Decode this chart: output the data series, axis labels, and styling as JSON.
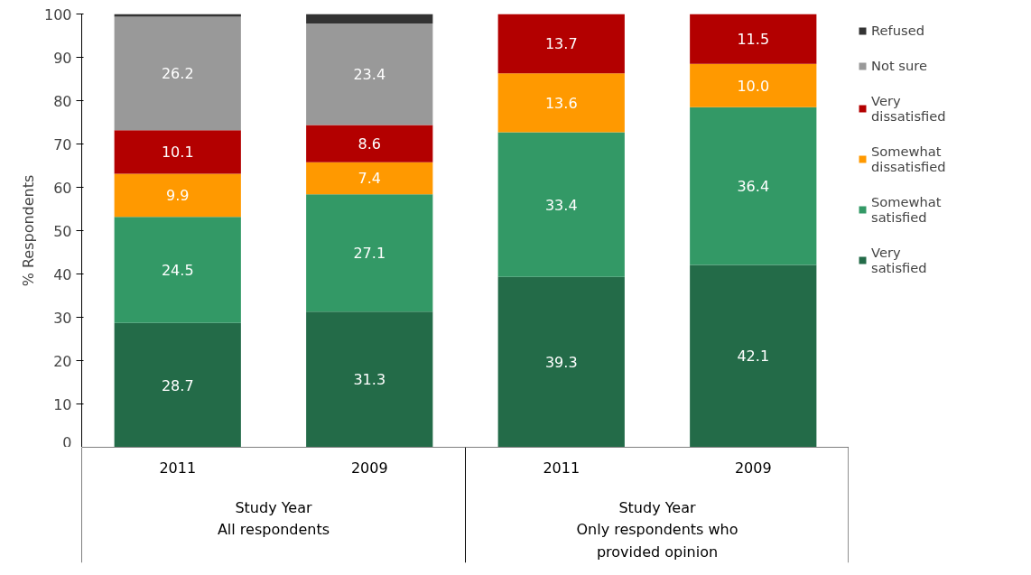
{
  "chart_data": {
    "type": "bar",
    "stacked": true,
    "ylabel": "% Respondents",
    "categories": [
      "2011",
      "2009",
      "2011",
      "2009"
    ],
    "series": [
      {
        "name": "Very satisfied",
        "color": "#236b48",
        "values": [
          28.7,
          31.3,
          39.3,
          42.1
        ],
        "value_labels": [
          "28.7",
          "31.3",
          "39.3",
          "42.1"
        ]
      },
      {
        "name": "Somewhat satisfied",
        "color": "#339966",
        "values": [
          24.5,
          27.1,
          33.4,
          36.4
        ],
        "value_labels": [
          "24.5",
          "27.1",
          "33.4",
          "36.4"
        ]
      },
      {
        "name": "Somewhat dissatisfied",
        "color": "#ff9900",
        "values": [
          9.9,
          7.4,
          13.6,
          10.0
        ],
        "value_labels": [
          "9.9",
          "7.4",
          "13.6",
          "10.0"
        ]
      },
      {
        "name": "Very dissatisfied",
        "color": "#b30000",
        "values": [
          10.1,
          8.6,
          13.7,
          11.5
        ],
        "value_labels": [
          "10.1",
          "8.6",
          "13.7",
          "11.5"
        ]
      },
      {
        "name": "Not sure",
        "color": "#999999",
        "values": [
          26.2,
          23.4,
          0,
          0
        ],
        "value_labels": [
          "26.2",
          "23.4",
          null,
          null
        ]
      },
      {
        "name": "Refused",
        "color": "#333333",
        "values": [
          0.6,
          2.2,
          0,
          0
        ],
        "value_labels": [
          null,
          null,
          null,
          null
        ]
      }
    ],
    "ylim": [
      0,
      100
    ],
    "yticks": [
      0,
      10,
      20,
      30,
      40,
      50,
      60,
      70,
      80,
      90,
      100
    ],
    "grid": false,
    "legend": "right",
    "annotations": [
      "Study Year",
      "All respondents",
      "Study Year",
      "Only respondents who provided opinion"
    ]
  }
}
